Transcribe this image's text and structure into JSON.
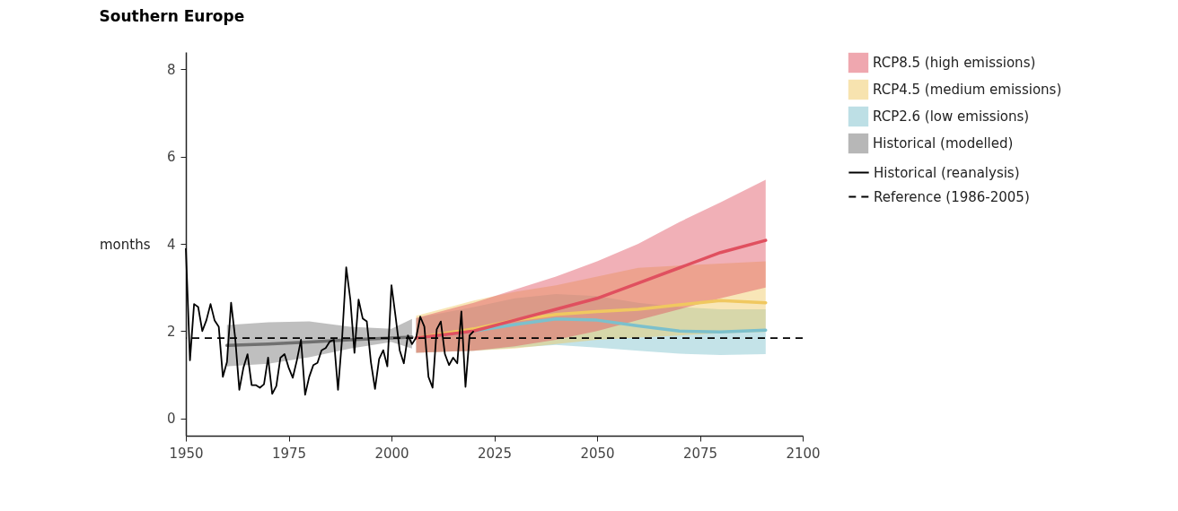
{
  "chart_data": {
    "type": "line",
    "title": "Southern Europe",
    "ylabel": "months",
    "xlim": [
      1950,
      2100
    ],
    "xticks": [
      1950,
      1975,
      2000,
      2025,
      2050,
      2075,
      2100
    ],
    "ylim": [
      -0.4,
      8.4
    ],
    "yticks": [
      0,
      2,
      4,
      6,
      8
    ],
    "grid": false,
    "legend": "right",
    "line_style": "solid",
    "series": [
      {
        "name": "RCP8.5 (high emissions)",
        "color": "#e0505f",
        "x": [
          2006,
          2020,
          2030,
          2040,
          2050,
          2060,
          2070,
          2080,
          2091
        ],
        "values": [
          1.84,
          2.0,
          2.25,
          2.5,
          2.75,
          3.1,
          3.45,
          3.8,
          4.08
        ],
        "lower": [
          1.5,
          1.55,
          1.65,
          1.8,
          2.0,
          2.25,
          2.5,
          2.75,
          3.0
        ],
        "upper": [
          2.3,
          2.65,
          2.95,
          3.25,
          3.6,
          4.0,
          4.5,
          4.95,
          5.47
        ]
      },
      {
        "name": "RCP4.5 (medium emissions)",
        "color": "#f0c860",
        "x": [
          2006,
          2020,
          2030,
          2040,
          2050,
          2060,
          2070,
          2080,
          2091
        ],
        "values": [
          1.84,
          2.05,
          2.25,
          2.38,
          2.45,
          2.5,
          2.6,
          2.7,
          2.65
        ],
        "lower": [
          1.5,
          1.55,
          1.6,
          1.7,
          1.8,
          1.85,
          1.9,
          1.95,
          1.98
        ],
        "upper": [
          2.35,
          2.7,
          2.9,
          3.05,
          3.25,
          3.45,
          3.5,
          3.55,
          3.6
        ]
      },
      {
        "name": "RCP2.6 (low emissions)",
        "color": "#7cc0cc",
        "x": [
          2006,
          2020,
          2030,
          2040,
          2050,
          2060,
          2070,
          2080,
          2091
        ],
        "values": [
          1.84,
          2.0,
          2.15,
          2.28,
          2.25,
          2.12,
          2.0,
          1.98,
          2.02
        ],
        "lower": [
          1.5,
          1.55,
          1.62,
          1.68,
          1.62,
          1.55,
          1.48,
          1.45,
          1.47
        ],
        "upper": [
          2.3,
          2.55,
          2.75,
          2.85,
          2.8,
          2.65,
          2.55,
          2.5,
          2.5
        ]
      },
      {
        "name": "Historical (modelled)",
        "color": "#707070",
        "x": [
          1960,
          1970,
          1980,
          1990,
          2000,
          2005
        ],
        "values": [
          1.67,
          1.7,
          1.75,
          1.8,
          1.84,
          1.86
        ],
        "lower": [
          1.19,
          1.25,
          1.4,
          1.6,
          1.75,
          1.6
        ],
        "upper": [
          2.14,
          2.2,
          2.22,
          2.1,
          2.05,
          2.28
        ]
      },
      {
        "name": "Historical (reanalysis)",
        "color": "#000000",
        "x": [
          1950,
          1951,
          1952,
          1953,
          1954,
          1955,
          1956,
          1957,
          1958,
          1959,
          1960,
          1961,
          1962,
          1963,
          1964,
          1965,
          1966,
          1967,
          1968,
          1969,
          1970,
          1971,
          1972,
          1973,
          1974,
          1975,
          1976,
          1977,
          1978,
          1979,
          1980,
          1981,
          1982,
          1983,
          1984,
          1985,
          1986,
          1987,
          1988,
          1989,
          1990,
          1991,
          1992,
          1993,
          1994,
          1995,
          1996,
          1997,
          1998,
          1999,
          2000,
          2001,
          2002,
          2003,
          2004,
          2005,
          2006,
          2007,
          2008,
          2009,
          2010,
          2011,
          2012,
          2013,
          2014,
          2015,
          2016,
          2017,
          2018,
          2019,
          2020
        ],
        "values": [
          3.9,
          1.33,
          2.62,
          2.55,
          2.0,
          2.25,
          2.62,
          2.24,
          2.1,
          0.95,
          1.29,
          2.65,
          1.84,
          0.65,
          1.16,
          1.47,
          0.76,
          0.76,
          0.7,
          0.78,
          1.39,
          0.56,
          0.74,
          1.39,
          1.47,
          1.16,
          0.93,
          1.33,
          1.8,
          0.54,
          0.95,
          1.22,
          1.27,
          1.56,
          1.61,
          1.76,
          1.8,
          0.65,
          1.84,
          3.46,
          2.72,
          1.5,
          2.72,
          2.29,
          2.22,
          1.29,
          0.67,
          1.36,
          1.56,
          1.19,
          3.05,
          2.33,
          1.56,
          1.26,
          1.9,
          1.7,
          1.85,
          2.33,
          2.1,
          0.95,
          0.7,
          2.04,
          2.22,
          1.47,
          1.22,
          1.39,
          1.26,
          2.45,
          0.72,
          1.9,
          2.0
        ]
      }
    ],
    "ref_lines": [
      {
        "axis": "y",
        "value": 1.84,
        "label": "Reference (1986-2005)",
        "color": "#000000",
        "line_style": "dashed"
      }
    ]
  }
}
